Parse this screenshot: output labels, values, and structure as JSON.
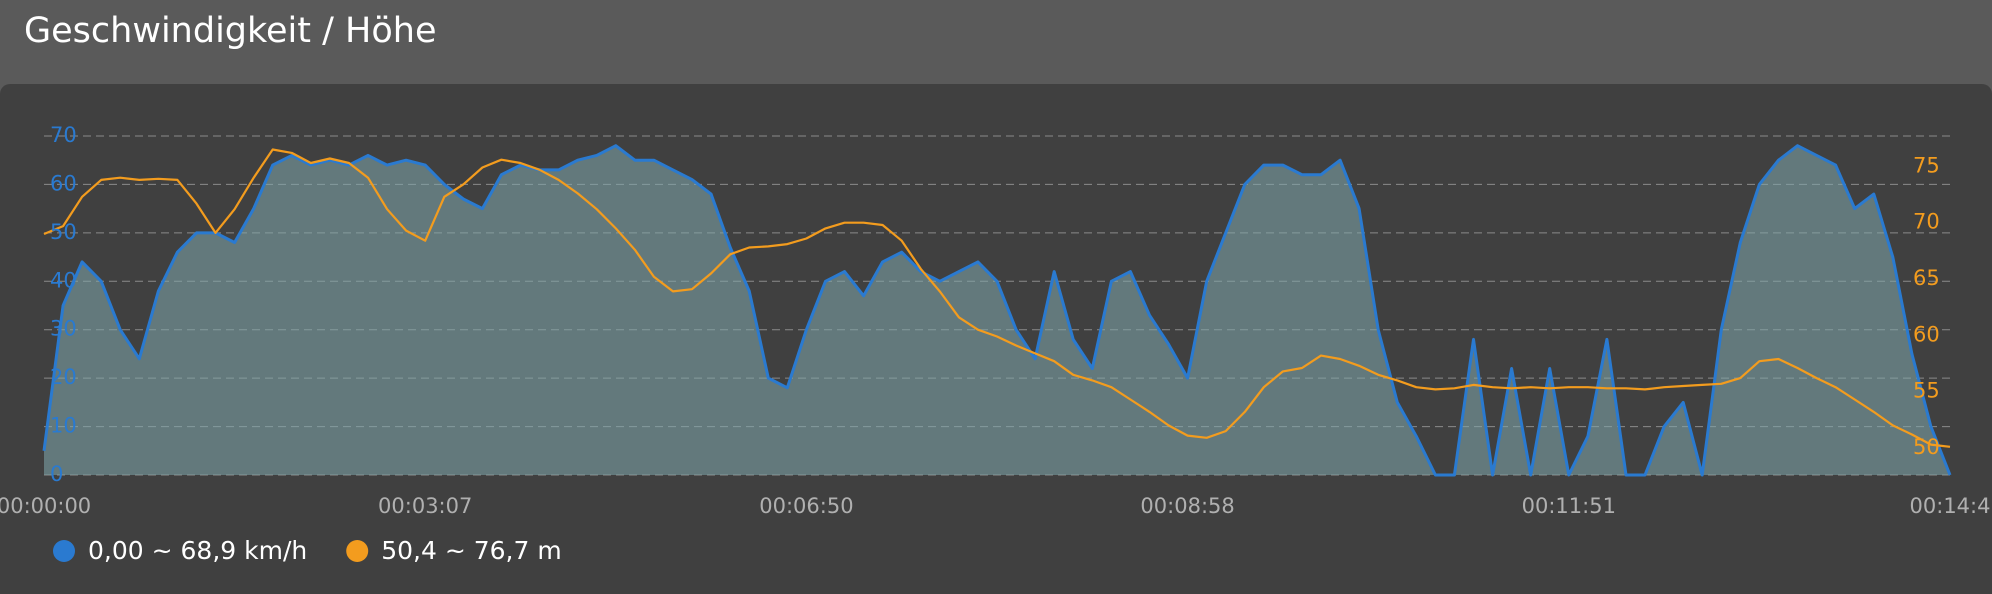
{
  "chart_data": {
    "type": "line",
    "title": "Geschwindigkeit / Höhe",
    "xlim": [
      0,
      100
    ],
    "xticks": [
      {
        "value": 0,
        "label": "00:00:00"
      },
      {
        "value": 20,
        "label": "00:03:07"
      },
      {
        "value": 40,
        "label": "00:06:50"
      },
      {
        "value": 60,
        "label": "00:08:58"
      },
      {
        "value": 80,
        "label": "00:11:51"
      },
      {
        "value": 100,
        "label": "00:14:4"
      }
    ],
    "ylim": [
      0,
      70
    ],
    "yticks": [
      0,
      10,
      20,
      30,
      40,
      50,
      60,
      70
    ],
    "y2lim": [
      47.6,
      77.7
    ],
    "y2ticks": [
      50,
      55,
      60,
      65,
      70,
      75
    ],
    "grid": true,
    "series": [
      {
        "name": "0,00 ~ 68,9 km/h",
        "color": "#2a7ad0",
        "fill": true,
        "values": [
          5,
          35,
          44,
          40,
          30,
          24,
          38,
          46,
          50,
          50,
          48,
          55,
          64,
          66,
          64,
          65,
          64,
          66,
          64,
          65,
          64,
          60,
          57,
          55,
          62,
          64,
          63,
          63,
          65,
          66,
          68,
          65,
          65,
          63,
          61,
          58,
          47,
          38,
          20,
          18,
          30,
          40,
          42,
          37,
          44,
          46,
          42,
          40,
          42,
          44,
          40,
          30,
          24,
          42,
          28,
          22,
          40,
          42,
          33,
          27,
          20,
          40,
          50,
          60,
          64,
          64,
          62,
          62,
          65,
          55,
          30,
          15,
          8,
          0,
          0,
          28,
          0,
          22,
          0,
          22,
          0,
          8,
          28,
          0,
          0,
          10,
          15,
          0,
          30,
          48,
          60,
          65,
          68,
          66,
          64,
          55,
          58,
          45,
          25,
          10,
          0
        ]
      },
      {
        "name": "50,4 ~ 76,7 m",
        "color": "#f39c1e",
        "axis": "y2",
        "values": [
          69.0,
          69.7,
          72.3,
          73.8,
          74.0,
          73.8,
          73.9,
          73.8,
          71.7,
          69.1,
          71.2,
          74.0,
          76.5,
          76.2,
          75.3,
          75.7,
          75.3,
          74.0,
          71.2,
          69.3,
          68.4,
          72.3,
          73.4,
          74.9,
          75.6,
          75.3,
          74.7,
          73.8,
          72.6,
          71.2,
          69.5,
          67.6,
          65.2,
          63.9,
          64.1,
          65.5,
          67.2,
          67.8,
          67.9,
          68.1,
          68.6,
          69.5,
          70.0,
          70.0,
          69.8,
          68.4,
          65.9,
          63.9,
          61.6,
          60.5,
          59.9,
          59.1,
          58.4,
          57.7,
          56.5,
          56.0,
          55.4,
          54.3,
          53.2,
          52.0,
          51.1,
          50.9,
          51.5,
          53.2,
          55.4,
          56.8,
          57.1,
          58.2,
          57.9,
          57.3,
          56.5,
          56.0,
          55.4,
          55.2,
          55.3,
          55.6,
          55.4,
          55.3,
          55.4,
          55.3,
          55.4,
          55.4,
          55.3,
          55.3,
          55.2,
          55.4,
          55.5,
          55.6,
          55.7,
          56.2,
          57.7,
          57.9,
          57.1,
          56.2,
          55.4,
          54.3,
          53.2,
          52.0,
          51.2,
          50.3,
          50.1
        ]
      }
    ]
  }
}
